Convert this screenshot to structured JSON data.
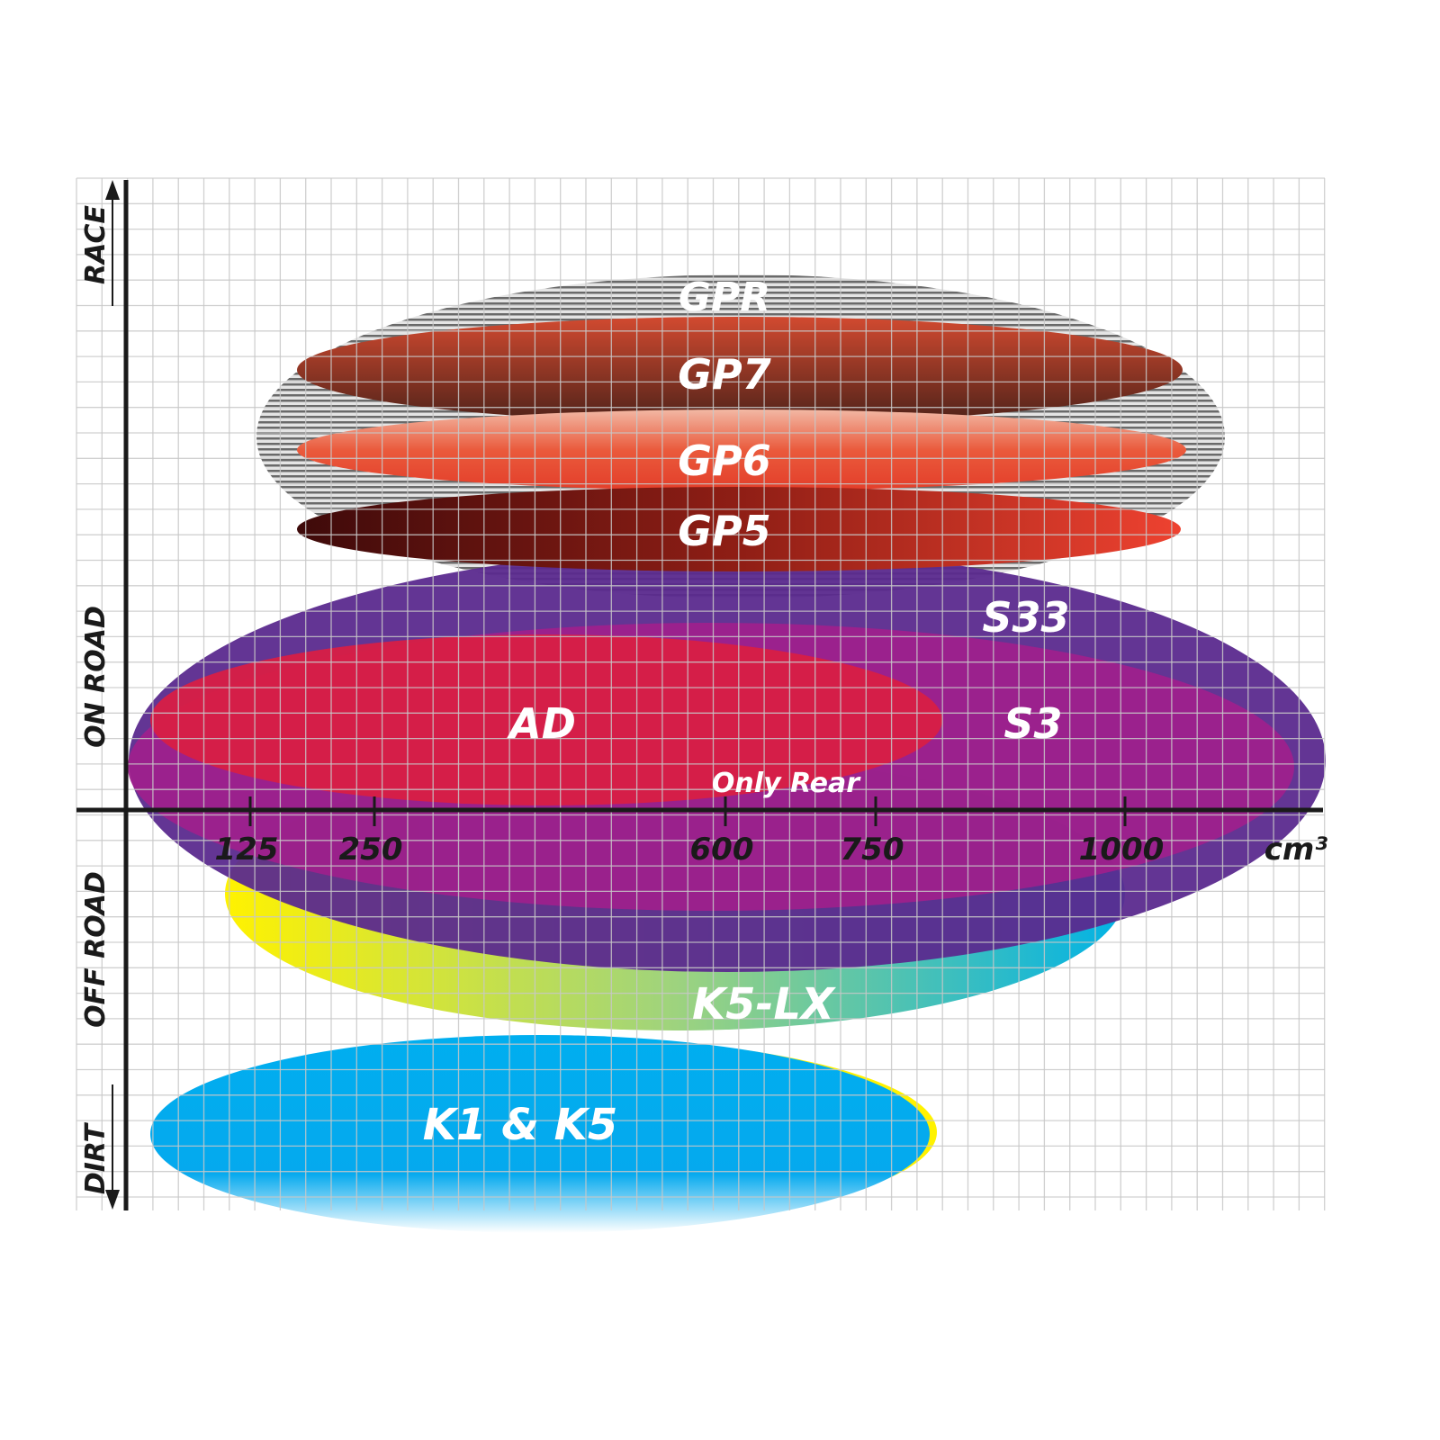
{
  "chart_data": {
    "type": "range-ellipse",
    "title": "",
    "xlabel": "cm³",
    "x_ticks": [
      "125",
      "250",
      "600",
      "750",
      "1000"
    ],
    "y_categories": [
      "RACE",
      "ON ROAD",
      "OFF ROAD",
      "DIRT"
    ],
    "grid": true,
    "products": [
      {
        "name": "GPR",
        "color": "#9a9a9a"
      },
      {
        "name": "GP7",
        "color": "#b8412c"
      },
      {
        "name": "GP6",
        "color": "#e8452e"
      },
      {
        "name": "GP5",
        "color": "#8a1a14"
      },
      {
        "name": "S33",
        "color": "#5b2a8e"
      },
      {
        "name": "S3",
        "color": "#a11f8c"
      },
      {
        "name": "AD",
        "color": "#d81f45"
      },
      {
        "name": "K5-LX",
        "color": "#2bb7d8",
        "note": "Only Rear"
      },
      {
        "name": "K1 & K5",
        "color": "#00aeef"
      }
    ]
  }
}
